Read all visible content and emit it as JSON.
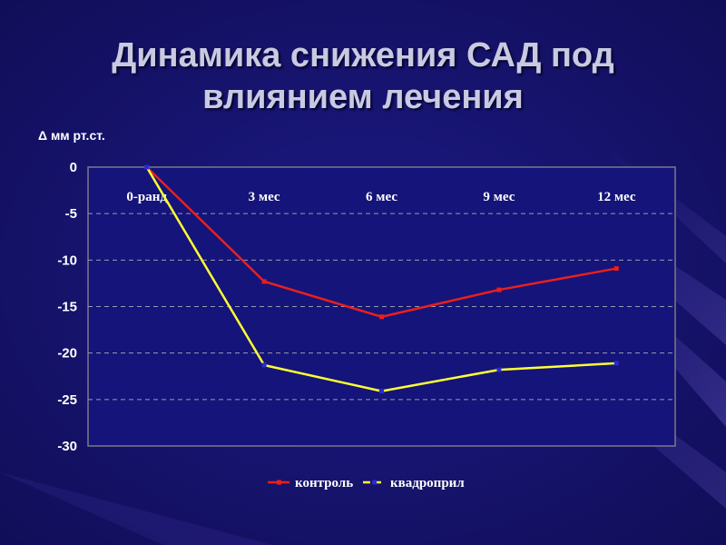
{
  "slide": {
    "title_line1": "Динамика снижения САД под",
    "title_line2": "влиянием лечения",
    "axis_unit": "Δ мм рт.ст."
  },
  "colors": {
    "background": "#16126e",
    "plot_area": "#14147a",
    "control": "#e8201c",
    "quadropril": "#ffff33",
    "marker_quadropril": "#2a2ad0"
  },
  "chart_data": {
    "type": "line",
    "categories": [
      "0-ранд",
      "3 мес",
      "6 мес",
      "9 мес",
      "12 мес"
    ],
    "ylim": [
      -30,
      0
    ],
    "yticks": [
      0,
      -5,
      -10,
      -15,
      -20,
      -25,
      -30
    ],
    "grid": "horizontal dashed",
    "legend_position": "bottom",
    "series": [
      {
        "name": "контроль",
        "values": [
          0,
          -12.3,
          -16.1,
          -13.2,
          -10.9
        ]
      },
      {
        "name": "квадроприл",
        "values": [
          0,
          -21.3,
          -24.1,
          -21.8,
          -21.1
        ]
      }
    ]
  }
}
